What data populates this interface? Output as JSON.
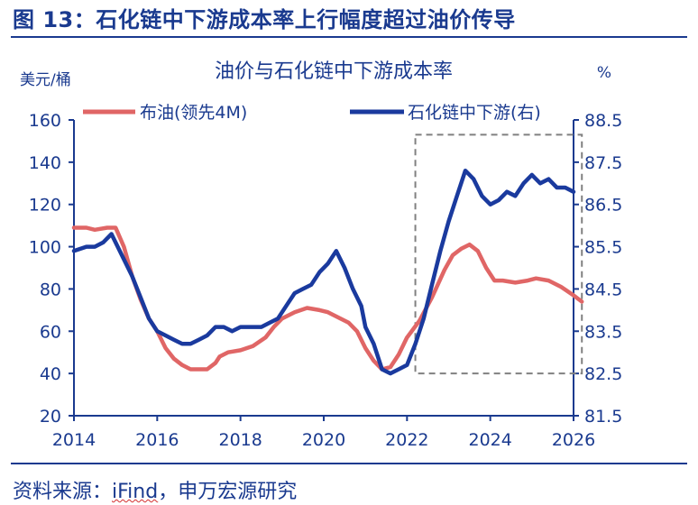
{
  "figure": {
    "title": "图 13：石化链中下游成本率上行幅度超过油价传导",
    "source_prefix": "资料来源：",
    "source_ifind": "iFind",
    "source_suffix": "，申万宏源研究"
  },
  "chart_data": {
    "type": "line",
    "title": "油价与石化链中下游成本率",
    "ylabel_left": "美元/桶",
    "ylabel_right": "%",
    "x_ticks": [
      "2014",
      "2016",
      "2018",
      "2020",
      "2022",
      "2024",
      "2026"
    ],
    "y_left_ticks": [
      "20",
      "40",
      "60",
      "80",
      "100",
      "120",
      "140",
      "160"
    ],
    "y_right_ticks": [
      "81.5",
      "82.5",
      "83.5",
      "84.5",
      "85.5",
      "86.5",
      "87.5",
      "88.5"
    ],
    "xlim": [
      2014,
      2026
    ],
    "ylim_left": [
      20,
      160
    ],
    "ylim_right": [
      81.5,
      88.5
    ],
    "series": [
      {
        "name": "布油(领先4M)",
        "axis": "left",
        "color": "#e06666",
        "x": [
          2014.0,
          2014.3,
          2014.5,
          2014.8,
          2015.0,
          2015.2,
          2015.4,
          2015.6,
          2015.8,
          2016.0,
          2016.2,
          2016.4,
          2016.6,
          2016.8,
          2017.0,
          2017.2,
          2017.4,
          2017.5,
          2017.7,
          2018.0,
          2018.3,
          2018.6,
          2018.8,
          2019.0,
          2019.3,
          2019.6,
          2019.9,
          2020.1,
          2020.4,
          2020.6,
          2020.8,
          2021.0,
          2021.2,
          2021.4,
          2021.6,
          2021.8,
          2022.0,
          2022.3,
          2022.6,
          2022.9,
          2023.1,
          2023.3,
          2023.5,
          2023.7,
          2023.9,
          2024.1,
          2024.3,
          2024.6,
          2024.9,
          2025.1,
          2025.4,
          2025.7,
          2026.0,
          2026.2
        ],
        "values": [
          109,
          109,
          108,
          109,
          109,
          100,
          86,
          75,
          66,
          60,
          52,
          47,
          44,
          42,
          42,
          42,
          45,
          48,
          50,
          51,
          53,
          57,
          62,
          66,
          69,
          71,
          70,
          69,
          66,
          64,
          60,
          52,
          46,
          42,
          43,
          49,
          57,
          65,
          76,
          89,
          96,
          99,
          101,
          98,
          90,
          84,
          84,
          83,
          84,
          85,
          84,
          81,
          77,
          74
        ]
      },
      {
        "name": "石化链中下游(右)",
        "axis": "right",
        "color": "#1a3a9e",
        "x": [
          2014.0,
          2014.3,
          2014.5,
          2014.7,
          2014.9,
          2015.0,
          2015.2,
          2015.4,
          2015.6,
          2015.8,
          2016.0,
          2016.2,
          2016.4,
          2016.6,
          2016.8,
          2017.0,
          2017.2,
          2017.4,
          2017.6,
          2017.8,
          2018.0,
          2018.2,
          2018.5,
          2018.7,
          2018.9,
          2019.1,
          2019.3,
          2019.5,
          2019.7,
          2019.9,
          2020.1,
          2020.3,
          2020.5,
          2020.7,
          2020.9,
          2021.0,
          2021.2,
          2021.4,
          2021.6,
          2021.8,
          2022.0,
          2022.2,
          2022.4,
          2022.6,
          2022.8,
          2023.0,
          2023.2,
          2023.4,
          2023.6,
          2023.8,
          2024.0,
          2024.2,
          2024.4,
          2024.6,
          2024.8,
          2025.0,
          2025.2,
          2025.4,
          2025.6,
          2025.8,
          2026.0
        ],
        "values": [
          85.4,
          85.5,
          85.5,
          85.6,
          85.8,
          85.6,
          85.2,
          84.8,
          84.3,
          83.8,
          83.5,
          83.4,
          83.3,
          83.2,
          83.2,
          83.3,
          83.4,
          83.6,
          83.6,
          83.5,
          83.6,
          83.6,
          83.6,
          83.7,
          83.8,
          84.1,
          84.4,
          84.5,
          84.6,
          84.9,
          85.1,
          85.4,
          85.0,
          84.5,
          84.1,
          83.6,
          83.2,
          82.6,
          82.5,
          82.6,
          82.7,
          83.2,
          83.8,
          84.6,
          85.4,
          86.1,
          86.7,
          87.3,
          87.1,
          86.7,
          86.5,
          86.6,
          86.8,
          86.7,
          87.0,
          87.2,
          87.0,
          87.1,
          86.9,
          86.9,
          86.8
        ]
      }
    ],
    "highlight_box": {
      "x_range": [
        2022.2,
        2026.2
      ],
      "y_left_range": [
        40,
        153
      ],
      "style": "dashed",
      "color": "#808080"
    }
  }
}
